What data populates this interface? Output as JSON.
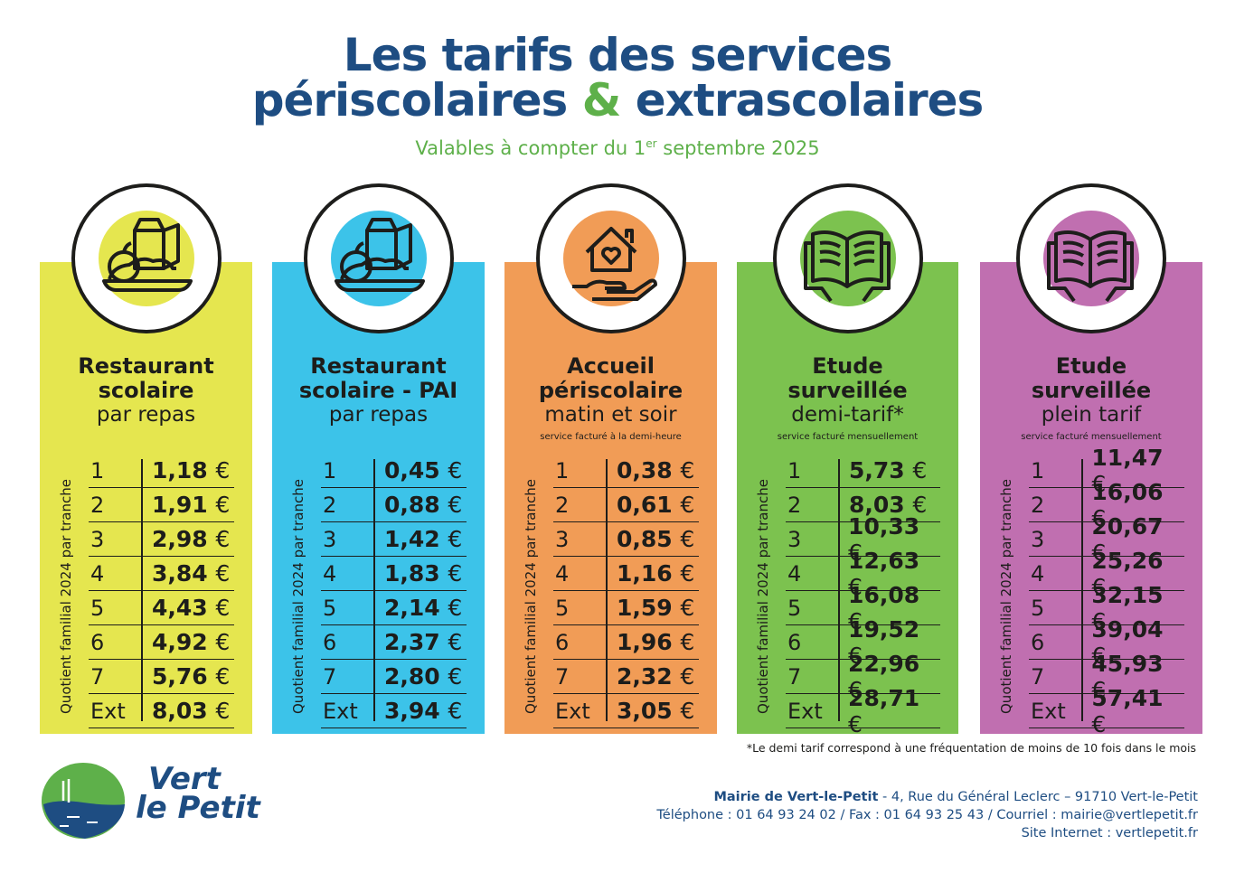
{
  "header": {
    "title_line1": "Les tarifs des services",
    "title_line2_a": "périscolaires",
    "title_line2_amp": "&",
    "title_line2_b": "extrascolaires",
    "subtitle_a": "Valables à compter du 1",
    "subtitle_sup": "er",
    "subtitle_b": " septembre 2025"
  },
  "side_label": "Quotient familial 2024 par tranche",
  "cards": [
    {
      "color": "#e5e64f",
      "icon": "meal-icon",
      "name_bold": [
        "Restaurant",
        "scolaire"
      ],
      "name_regular": "par repas",
      "note": "",
      "rows": [
        {
          "k": "1",
          "v": "1,18",
          "u": "€"
        },
        {
          "k": "2",
          "v": "1,91",
          "u": "€"
        },
        {
          "k": "3",
          "v": "2,98",
          "u": "€"
        },
        {
          "k": "4",
          "v": "3,84",
          "u": "€"
        },
        {
          "k": "5",
          "v": "4,43",
          "u": "€"
        },
        {
          "k": "6",
          "v": "4,92",
          "u": "€"
        },
        {
          "k": "7",
          "v": "5,76",
          "u": "€"
        },
        {
          "k": "Ext",
          "v": "8,03",
          "u": "€"
        }
      ]
    },
    {
      "color": "#3cc3e9",
      "icon": "meal-icon",
      "name_bold": [
        "Restaurant",
        "scolaire - PAI"
      ],
      "name_regular": "par repas",
      "note": "",
      "rows": [
        {
          "k": "1",
          "v": "0,45",
          "u": "€"
        },
        {
          "k": "2",
          "v": "0,88",
          "u": "€"
        },
        {
          "k": "3",
          "v": "1,42",
          "u": "€"
        },
        {
          "k": "4",
          "v": "1,83",
          "u": "€"
        },
        {
          "k": "5",
          "v": "2,14",
          "u": "€"
        },
        {
          "k": "6",
          "v": "2,37",
          "u": "€"
        },
        {
          "k": "7",
          "v": "2,80",
          "u": "€"
        },
        {
          "k": "Ext",
          "v": "3,94",
          "u": "€"
        }
      ]
    },
    {
      "color": "#f19c56",
      "icon": "house-hand-icon",
      "name_bold": [
        "Accueil",
        "périscolaire"
      ],
      "name_regular": "matin et soir",
      "note": "service facturé à la demi-heure",
      "rows": [
        {
          "k": "1",
          "v": "0,38",
          "u": "€"
        },
        {
          "k": "2",
          "v": "0,61",
          "u": "€"
        },
        {
          "k": "3",
          "v": "0,85",
          "u": "€"
        },
        {
          "k": "4",
          "v": "1,16",
          "u": "€"
        },
        {
          "k": "5",
          "v": "1,59",
          "u": "€"
        },
        {
          "k": "6",
          "v": "1,96",
          "u": "€"
        },
        {
          "k": "7",
          "v": "2,32",
          "u": "€"
        },
        {
          "k": "Ext",
          "v": "3,05",
          "u": "€"
        }
      ]
    },
    {
      "color": "#7cc24f",
      "icon": "book-icon",
      "name_bold": [
        "Etude",
        "surveillée"
      ],
      "name_regular": "demi-tarif*",
      "note": "service facturé mensuellement",
      "rows": [
        {
          "k": "1",
          "v": "5,73",
          "u": "€"
        },
        {
          "k": "2",
          "v": "8,03",
          "u": "€"
        },
        {
          "k": "3",
          "v": "10,33",
          "u": "€"
        },
        {
          "k": "4",
          "v": "12,63",
          "u": "€"
        },
        {
          "k": "5",
          "v": "16,08",
          "u": "€"
        },
        {
          "k": "6",
          "v": "19,52",
          "u": "€"
        },
        {
          "k": "7",
          "v": "22,96",
          "u": "€"
        },
        {
          "k": "Ext",
          "v": "28,71",
          "u": "€"
        }
      ]
    },
    {
      "color": "#c06fb0",
      "icon": "book-icon",
      "name_bold": [
        "Etude",
        "surveillée"
      ],
      "name_regular": "plein tarif",
      "note": "service facturé mensuellement",
      "rows": [
        {
          "k": "1",
          "v": "11,47",
          "u": "€"
        },
        {
          "k": "2",
          "v": "16,06",
          "u": "€"
        },
        {
          "k": "3",
          "v": "20,67",
          "u": "€"
        },
        {
          "k": "4",
          "v": "25,26",
          "u": "€"
        },
        {
          "k": "5",
          "v": "32,15",
          "u": "€"
        },
        {
          "k": "6",
          "v": "39,04",
          "u": "€"
        },
        {
          "k": "7",
          "v": "45,93",
          "u": "€"
        },
        {
          "k": "Ext",
          "v": "57,41",
          "u": "€"
        }
      ]
    }
  ],
  "footnote": "*Le demi tarif correspond à une fréquentation de moins de 10 fois dans le mois",
  "footer": {
    "org": "Mairie de Vert-le-Petit",
    "address": " - 4, Rue du Général Leclerc – 91710 Vert-le-Petit",
    "phone": "Téléphone : 01 64 93 24 02 / Fax : 01 64 93 25 43 / Courriel : mairie@vertlepetit.fr",
    "site": "Site Internet : vertlepetit.fr"
  },
  "logo": {
    "line1": "Vert",
    "line2": "le Petit"
  }
}
